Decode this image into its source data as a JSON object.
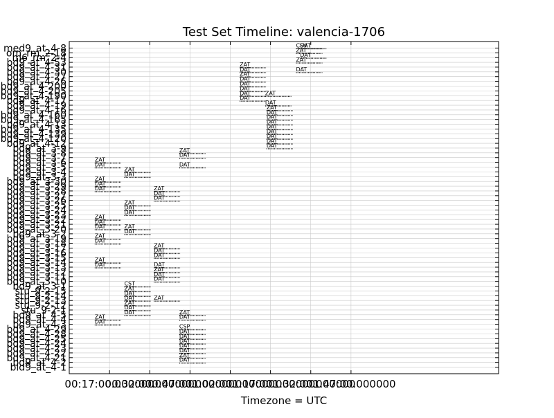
{
  "chart_data": {
    "type": "timeline",
    "title": "Test Set Timeline: valencia-1706",
    "xlabel": "Timezone = UTC",
    "ylabel": "",
    "grid": true,
    "x_tick_labels": [
      "00:17:00.000000",
      "00:32:00.000000",
      "00:47:00.000000",
      "01:02:00.000000",
      "01:17:00.000000",
      "01:32:00.000000",
      "01:47:00.000000"
    ],
    "x_tick_minutes": [
      17,
      32,
      47,
      62,
      77,
      92,
      107
    ],
    "xlim_minutes": [
      2,
      162
    ],
    "y_tick_labels": [
      "med9_at_4-8",
      "om_rm_2-18",
      "m6_rm_2-4",
      "bd9_at_4-53",
      "bd9_at_4-31",
      "bd9_at_4-30",
      "bd9_at_4-27",
      "bd9_at_4-26",
      "bd9_at_4-200",
      "bd9_at_4-205",
      "bd9_at_4-190",
      "bd9_at_4-17",
      "bd9_at_4-19",
      "bd9_at_4-16",
      "bd9_at_4-160",
      "bd9_at_4-165",
      "bd9_at_4-13",
      "bd9_at_4-135",
      "bd9_at_4-139",
      "bd9_at_4-120",
      "bd9_at_4-12",
      "bd9_at_3-9",
      "bd9_at_3-8",
      "bd9_at_3-7",
      "bd9_at_3-6",
      "bd9_at_3-5",
      "bd9_at_3-4",
      "bd9_at_3-3",
      "bd9_at_3-30",
      "bd9_at_3-29",
      "bd9_at_3-28",
      "bd9_at_3-27",
      "bd9_at_3-26",
      "bd9_at_3-25",
      "bd9_at_3-24",
      "bd9_at_3-23",
      "bd9_at_3-22",
      "bd9_at_3-21",
      "bd9_at_3-20",
      "bd9_at_3-2",
      "bd9_at_3-19",
      "bd9_at_3-18",
      "bd9_at_3-17",
      "bd9_at_3-16",
      "bd9_at_3-15",
      "bd9_at_3-14",
      "bd9_at_3-13",
      "bd9_at_3-12",
      "bd9_at_3-11",
      "bd9_at_3-10",
      "bd9_at_3-1",
      "stu_9-2-15",
      "stu_9-2-14",
      "stu_9-2-13",
      "stu_9-2-12",
      "stu_9-2-1",
      "bd9_at_4-5",
      "bd9_at_4-4",
      "bd9_at_4-3",
      "bd9_at_4-29",
      "bd9_at_4-28",
      "bd9_at_4-25",
      "bd9_at_4-24",
      "bd9_at_4-23",
      "bd9_at_4-22",
      "bd9_at_4-21",
      "bd9_at_4-2",
      "bld9_at_4-1"
    ],
    "events": [
      {
        "row": 0,
        "start": 86.5,
        "label": "CSV"
      },
      {
        "row": 0,
        "start": 88.0,
        "label": "DAT"
      },
      {
        "row": 1,
        "start": 86.5,
        "label": "ZAT"
      },
      {
        "row": 2,
        "start": 88.0,
        "label": "DAT"
      },
      {
        "row": 3,
        "start": 86.5,
        "label": "ZAT"
      },
      {
        "row": 4,
        "start": 65.5,
        "label": "ZAT"
      },
      {
        "row": 5,
        "start": 65.5,
        "label": "DAT"
      },
      {
        "row": 5,
        "start": 86.5,
        "label": "DAT"
      },
      {
        "row": 6,
        "start": 65.5,
        "label": "ZAT"
      },
      {
        "row": 7,
        "start": 65.5,
        "label": "DAT"
      },
      {
        "row": 8,
        "start": 65.5,
        "label": "DAT"
      },
      {
        "row": 9,
        "start": 65.5,
        "label": "DAT"
      },
      {
        "row": 10,
        "start": 65.5,
        "label": "DAT"
      },
      {
        "row": 10,
        "start": 75.0,
        "label": "ZAT"
      },
      {
        "row": 11,
        "start": 65.5,
        "label": "DAT"
      },
      {
        "row": 12,
        "start": 75.0,
        "label": "DAT"
      },
      {
        "row": 13,
        "start": 75.5,
        "label": "ZAT"
      },
      {
        "row": 14,
        "start": 75.5,
        "label": "DAT"
      },
      {
        "row": 15,
        "start": 75.5,
        "label": "DAT"
      },
      {
        "row": 16,
        "start": 75.5,
        "label": "DAT"
      },
      {
        "row": 17,
        "start": 75.5,
        "label": "DAT"
      },
      {
        "row": 18,
        "start": 75.5,
        "label": "DAT"
      },
      {
        "row": 19,
        "start": 75.5,
        "label": "DAT"
      },
      {
        "row": 20,
        "start": 75.5,
        "label": "DAT"
      },
      {
        "row": 21,
        "start": 75.5,
        "label": "DAT"
      },
      {
        "row": 22,
        "start": 43.0,
        "label": "ZAT"
      },
      {
        "row": 23,
        "start": 43.0,
        "label": "DAT"
      },
      {
        "row": 24,
        "start": 11.5,
        "label": "ZAT"
      },
      {
        "row": 25,
        "start": 11.5,
        "label": "DAT"
      },
      {
        "row": 25,
        "start": 43.0,
        "label": "DAT"
      },
      {
        "row": 26,
        "start": 22.5,
        "label": "ZAT"
      },
      {
        "row": 27,
        "start": 22.5,
        "label": "DAT"
      },
      {
        "row": 28,
        "start": 11.5,
        "label": "ZAT"
      },
      {
        "row": 29,
        "start": 11.5,
        "label": "DAT"
      },
      {
        "row": 30,
        "start": 11.5,
        "label": "DAT"
      },
      {
        "row": 30,
        "start": 33.5,
        "label": "ZAT"
      },
      {
        "row": 31,
        "start": 33.5,
        "label": "DAT"
      },
      {
        "row": 32,
        "start": 33.5,
        "label": "DAT"
      },
      {
        "row": 33,
        "start": 22.5,
        "label": "ZAT"
      },
      {
        "row": 34,
        "start": 22.5,
        "label": "DAT"
      },
      {
        "row": 35,
        "start": 22.5,
        "label": "DAT"
      },
      {
        "row": 36,
        "start": 11.5,
        "label": "ZAT"
      },
      {
        "row": 37,
        "start": 11.5,
        "label": "DAT"
      },
      {
        "row": 38,
        "start": 11.5,
        "label": "DAT"
      },
      {
        "row": 38,
        "start": 22.5,
        "label": "ZAT"
      },
      {
        "row": 39,
        "start": 22.5,
        "label": "DAT"
      },
      {
        "row": 40,
        "start": 11.5,
        "label": "ZAT"
      },
      {
        "row": 41,
        "start": 11.5,
        "label": "DAT"
      },
      {
        "row": 42,
        "start": 33.5,
        "label": "ZAT"
      },
      {
        "row": 43,
        "start": 33.5,
        "label": "DAT"
      },
      {
        "row": 44,
        "start": 33.5,
        "label": "DAT"
      },
      {
        "row": 45,
        "start": 11.5,
        "label": "ZAT"
      },
      {
        "row": 46,
        "start": 11.5,
        "label": "DAT"
      },
      {
        "row": 46,
        "start": 33.5,
        "label": "DAT"
      },
      {
        "row": 47,
        "start": 33.5,
        "label": "ZAT"
      },
      {
        "row": 48,
        "start": 33.5,
        "label": "DAT"
      },
      {
        "row": 49,
        "start": 33.5,
        "label": "DAT"
      },
      {
        "row": 50,
        "start": 22.5,
        "label": "CST"
      },
      {
        "row": 51,
        "start": 22.5,
        "label": "ZAT"
      },
      {
        "row": 52,
        "start": 22.5,
        "label": "DAT"
      },
      {
        "row": 53,
        "start": 22.5,
        "label": "DAT"
      },
      {
        "row": 53,
        "start": 33.5,
        "label": "ZAT"
      },
      {
        "row": 54,
        "start": 22.5,
        "label": "ZAT"
      },
      {
        "row": 55,
        "start": 22.5,
        "label": "DAT"
      },
      {
        "row": 56,
        "start": 22.5,
        "label": "DAT"
      },
      {
        "row": 56,
        "start": 43.0,
        "label": "ZAT"
      },
      {
        "row": 57,
        "start": 11.5,
        "label": "ZAT"
      },
      {
        "row": 57,
        "start": 43.0,
        "label": "DAT"
      },
      {
        "row": 58,
        "start": 11.5,
        "label": "DAT"
      },
      {
        "row": 59,
        "start": 43.0,
        "label": "CSP"
      },
      {
        "row": 60,
        "start": 43.0,
        "label": "DAT"
      },
      {
        "row": 61,
        "start": 43.0,
        "label": "DAT"
      },
      {
        "row": 62,
        "start": 43.0,
        "label": "DAT"
      },
      {
        "row": 63,
        "start": 43.0,
        "label": "DAT"
      },
      {
        "row": 64,
        "start": 43.0,
        "label": "DAT"
      },
      {
        "row": 65,
        "start": 43.0,
        "label": "ZAT"
      },
      {
        "row": 66,
        "start": 43.0,
        "label": "DAT"
      }
    ]
  }
}
